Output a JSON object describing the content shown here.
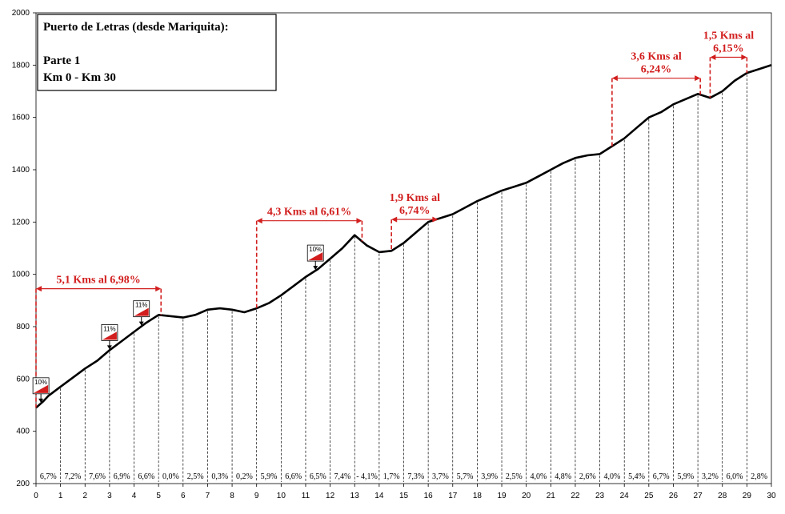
{
  "chart_data": {
    "type": "area",
    "title": "Puerto de Letras (desde Mariquita):",
    "subtitle": [
      "Parte 1",
      "Km 0 - Km 30"
    ],
    "xlabel": "",
    "ylabel": "",
    "xlim": [
      0,
      30
    ],
    "ylim": [
      200,
      2000
    ],
    "x_ticks": [
      0,
      1,
      2,
      3,
      4,
      5,
      6,
      7,
      8,
      9,
      10,
      11,
      12,
      13,
      14,
      15,
      16,
      17,
      18,
      19,
      20,
      21,
      22,
      23,
      24,
      25,
      26,
      27,
      28,
      29,
      30
    ],
    "y_ticks": [
      200,
      400,
      600,
      800,
      1000,
      1200,
      1400,
      1600,
      1800,
      2000
    ],
    "grid": false,
    "profile": {
      "x": [
        0,
        0.3,
        0.5,
        1,
        1.5,
        2,
        2.5,
        3,
        3.5,
        4,
        4.5,
        5,
        5.5,
        6,
        6.5,
        7,
        7.5,
        8,
        8.5,
        9,
        9.5,
        10,
        10.5,
        11,
        11.5,
        12,
        12.5,
        13,
        13.5,
        14,
        14.5,
        15,
        15.5,
        16,
        16.5,
        17,
        17.5,
        18,
        18.5,
        19,
        19.5,
        20,
        20.5,
        21,
        21.5,
        22,
        22.5,
        23,
        23.5,
        24,
        24.5,
        25,
        25.5,
        26,
        26.5,
        27,
        27.5,
        28,
        28.5,
        29,
        29.5,
        30
      ],
      "y": [
        490,
        515,
        535,
        570,
        605,
        640,
        670,
        710,
        745,
        780,
        815,
        845,
        840,
        835,
        845,
        865,
        870,
        865,
        855,
        870,
        890,
        920,
        955,
        990,
        1020,
        1060,
        1100,
        1150,
        1110,
        1085,
        1090,
        1120,
        1160,
        1200,
        1215,
        1230,
        1255,
        1280,
        1300,
        1320,
        1335,
        1350,
        1375,
        1400,
        1425,
        1445,
        1455,
        1460,
        1490,
        1520,
        1560,
        1600,
        1620,
        1650,
        1670,
        1690,
        1675,
        1700,
        1740,
        1770,
        1785,
        1800
      ]
    },
    "segments": [
      {
        "from": 0,
        "to": 1,
        "label": "6,7%"
      },
      {
        "from": 1,
        "to": 2,
        "label": "7,2%"
      },
      {
        "from": 2,
        "to": 3,
        "label": "7,6%"
      },
      {
        "from": 3,
        "to": 4,
        "label": "6,9%"
      },
      {
        "from": 4,
        "to": 5,
        "label": "6,6%"
      },
      {
        "from": 5,
        "to": 6,
        "label": "0,0%"
      },
      {
        "from": 6,
        "to": 7,
        "label": "2,5%"
      },
      {
        "from": 7,
        "to": 8,
        "label": "0,3%"
      },
      {
        "from": 8,
        "to": 9,
        "label": "0,2%"
      },
      {
        "from": 9,
        "to": 10,
        "label": "5,9%"
      },
      {
        "from": 10,
        "to": 11,
        "label": "6,6%"
      },
      {
        "from": 11,
        "to": 12,
        "label": "6,5%"
      },
      {
        "from": 12,
        "to": 13,
        "label": "7,4%"
      },
      {
        "from": 13,
        "to": 14,
        "label": "- 4,1%"
      },
      {
        "from": 14,
        "to": 15,
        "label": "1,7%"
      },
      {
        "from": 15,
        "to": 16,
        "label": "7,3%"
      },
      {
        "from": 16,
        "to": 17,
        "label": "3,7%"
      },
      {
        "from": 17,
        "to": 18,
        "label": "5,7%"
      },
      {
        "from": 18,
        "to": 19,
        "label": "3,9%"
      },
      {
        "from": 19,
        "to": 20,
        "label": "2,5%"
      },
      {
        "from": 20,
        "to": 21,
        "label": "4,0%"
      },
      {
        "from": 21,
        "to": 22,
        "label": "4,8%"
      },
      {
        "from": 22,
        "to": 23,
        "label": "2,6%"
      },
      {
        "from": 23,
        "to": 24,
        "label": "4,0%"
      },
      {
        "from": 24,
        "to": 25,
        "label": "5,4%"
      },
      {
        "from": 25,
        "to": 26,
        "label": "6,7%"
      },
      {
        "from": 26,
        "to": 27,
        "label": "5,9%"
      },
      {
        "from": 27,
        "to": 28,
        "label": "3,2%"
      },
      {
        "from": 28,
        "to": 29,
        "label": "6,0%"
      },
      {
        "from": 29,
        "to": 30,
        "label": "2,8%"
      }
    ],
    "annotations": [
      {
        "lines": [
          "5,1 Kms al 6,98%"
        ],
        "x_start": 0,
        "x_end": 5.1,
        "y": 945
      },
      {
        "lines": [
          "4,3 Kms al 6,61%"
        ],
        "x_start": 9,
        "x_end": 13.3,
        "y": 1205
      },
      {
        "lines": [
          "1,9 Kms al",
          "6,74%"
        ],
        "x_start": 14.5,
        "x_end": 16.4,
        "y": 1210
      },
      {
        "lines": [
          "3,6 Kms al",
          "6,24%"
        ],
        "x_start": 23.5,
        "x_end": 27.1,
        "y": 1750
      },
      {
        "lines": [
          "1,5 Kms al",
          "6,15%"
        ],
        "x_start": 27.5,
        "x_end": 29,
        "y": 1830
      }
    ],
    "markers": [
      {
        "km": 0.2,
        "label": "10%"
      },
      {
        "km": 3,
        "label": "11%"
      },
      {
        "km": 4.3,
        "label": "11%"
      },
      {
        "km": 11.4,
        "label": "10%"
      }
    ],
    "colors": {
      "profile": "#000000",
      "annotation": "#d21e1e",
      "flag_fill": "#d21e1e"
    }
  }
}
